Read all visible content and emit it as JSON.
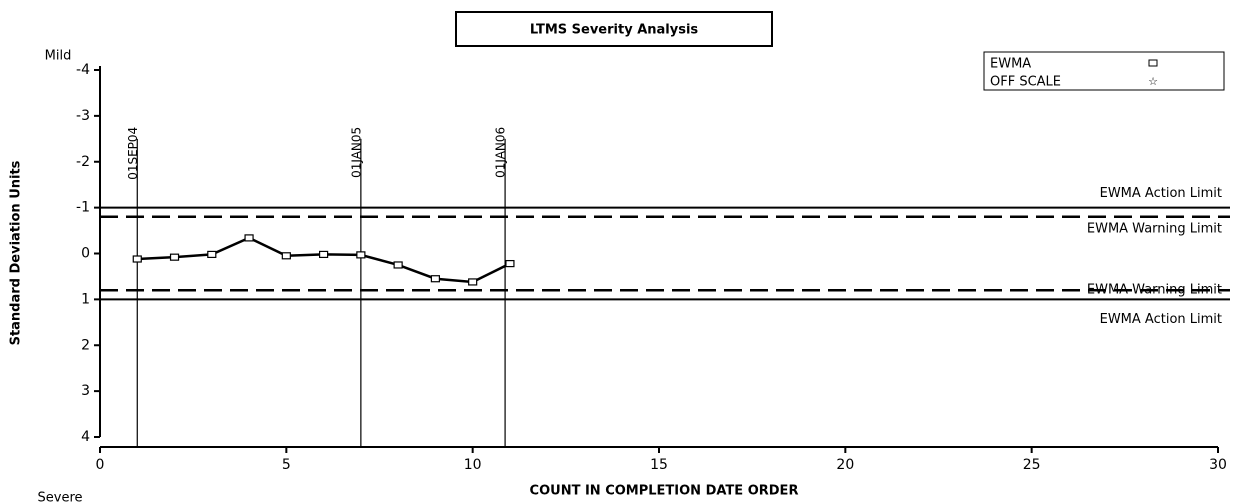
{
  "chart_data": {
    "type": "line",
    "title": "LTMS Severity Analysis",
    "xlabel": "COUNT IN COMPLETION DATE ORDER",
    "ylabel": "Standard Deviation Units",
    "y_top_label": "Mild",
    "y_bottom_label": "Severe",
    "x": [
      1,
      2,
      3,
      4,
      5,
      6,
      7,
      8,
      9,
      10,
      11
    ],
    "series": [
      {
        "name": "EWMA",
        "color": "#000000",
        "marker": "square",
        "values": [
          0.12,
          0.08,
          0.02,
          -0.34,
          0.05,
          0.02,
          0.03,
          0.25,
          0.55,
          0.62,
          0.22
        ]
      }
    ],
    "off_scale_legend": "OFF SCALE",
    "xlim": [
      0,
      30
    ],
    "xticks": [
      0,
      5,
      10,
      15,
      20,
      25,
      30
    ],
    "ylim": [
      -4,
      4
    ],
    "y_inverted": true,
    "yticks": [
      -4,
      -3,
      -2,
      -1,
      0,
      1,
      2,
      3,
      4
    ],
    "reference_lines": [
      {
        "value": -1,
        "label": "EWMA Action Limit",
        "style": "solid"
      },
      {
        "value": -0.8,
        "label": "EWMA Warning Limit",
        "style": "dashed"
      },
      {
        "value": 0.8,
        "label": "EWMA Warning Limit",
        "style": "dashed"
      },
      {
        "value": 1,
        "label": "EWMA Action Limit",
        "style": "solid"
      }
    ],
    "date_lines_top": -2.5,
    "date_lines": [
      {
        "x": 1,
        "label": "01SEP04"
      },
      {
        "x": 7,
        "label": "01JAN05"
      },
      {
        "x": 10.87,
        "label": "01JAN06"
      }
    ]
  }
}
